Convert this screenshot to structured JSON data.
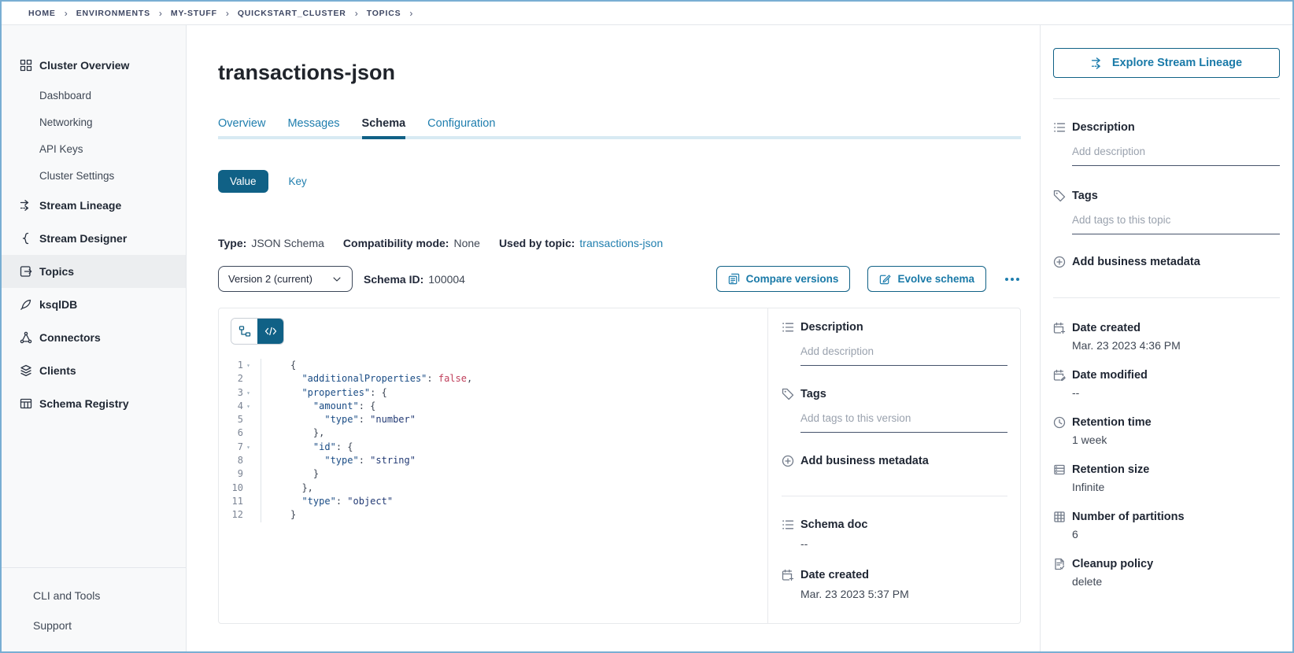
{
  "breadcrumb": [
    "HOME",
    "ENVIRONMENTS",
    "MY-STUFF",
    "QUICKSTART_CLUSTER",
    "TOPICS"
  ],
  "sidebar": {
    "items": [
      {
        "label": "Cluster Overview",
        "icon": "cluster-overview-icon",
        "type": "top"
      },
      {
        "label": "Dashboard",
        "type": "sub"
      },
      {
        "label": "Networking",
        "type": "sub"
      },
      {
        "label": "API Keys",
        "type": "sub"
      },
      {
        "label": "Cluster Settings",
        "type": "sub"
      },
      {
        "label": "Stream Lineage",
        "icon": "stream-lineage-icon",
        "type": "top"
      },
      {
        "label": "Stream Designer",
        "icon": "stream-designer-icon",
        "type": "top"
      },
      {
        "label": "Topics",
        "icon": "topics-icon",
        "type": "top",
        "active": true
      },
      {
        "label": "ksqlDB",
        "icon": "ksqldb-icon",
        "type": "top"
      },
      {
        "label": "Connectors",
        "icon": "connectors-icon",
        "type": "top"
      },
      {
        "label": "Clients",
        "icon": "clients-icon",
        "type": "top"
      },
      {
        "label": "Schema Registry",
        "icon": "schema-registry-icon",
        "type": "top"
      }
    ],
    "footer_items": [
      "CLI and Tools",
      "Support"
    ]
  },
  "page": {
    "title": "transactions-json"
  },
  "tabs": [
    {
      "label": "Overview"
    },
    {
      "label": "Messages"
    },
    {
      "label": "Schema",
      "active": true
    },
    {
      "label": "Configuration"
    }
  ],
  "serde_toggle": {
    "value_label": "Value",
    "key_label": "Key"
  },
  "schema_meta": {
    "type_label": "Type:",
    "type_value": "JSON Schema",
    "compatibility_label": "Compatibility mode:",
    "compatibility_value": "None",
    "used_by_label": "Used by topic:",
    "used_by_topic": "transactions-json"
  },
  "version_bar": {
    "selected_version": "Version 2 (current)",
    "schema_id_label": "Schema ID:",
    "schema_id": "100004",
    "compare_button": "Compare versions",
    "evolve_button": "Evolve schema"
  },
  "editor": {
    "lines": [
      {
        "num": 1,
        "fold": true,
        "segments": [
          [
            "p",
            "{"
          ]
        ]
      },
      {
        "num": 2,
        "fold": false,
        "segments": [
          [
            "p",
            "  "
          ],
          [
            "k",
            "\"additionalProperties\""
          ],
          [
            "p",
            ": "
          ],
          [
            "b",
            "false"
          ],
          [
            "p",
            ","
          ]
        ]
      },
      {
        "num": 3,
        "fold": true,
        "segments": [
          [
            "p",
            "  "
          ],
          [
            "k",
            "\"properties\""
          ],
          [
            "p",
            ": {"
          ]
        ]
      },
      {
        "num": 4,
        "fold": true,
        "segments": [
          [
            "p",
            "    "
          ],
          [
            "k",
            "\"amount\""
          ],
          [
            "p",
            ": {"
          ]
        ]
      },
      {
        "num": 5,
        "fold": false,
        "segments": [
          [
            "p",
            "      "
          ],
          [
            "k",
            "\"type\""
          ],
          [
            "p",
            ": "
          ],
          [
            "s",
            "\"number\""
          ]
        ]
      },
      {
        "num": 6,
        "fold": false,
        "segments": [
          [
            "p",
            "    },"
          ]
        ]
      },
      {
        "num": 7,
        "fold": true,
        "segments": [
          [
            "p",
            "    "
          ],
          [
            "k",
            "\"id\""
          ],
          [
            "p",
            ": {"
          ]
        ]
      },
      {
        "num": 8,
        "fold": false,
        "segments": [
          [
            "p",
            "      "
          ],
          [
            "k",
            "\"type\""
          ],
          [
            "p",
            ": "
          ],
          [
            "s",
            "\"string\""
          ]
        ]
      },
      {
        "num": 9,
        "fold": false,
        "segments": [
          [
            "p",
            "    }"
          ]
        ]
      },
      {
        "num": 10,
        "fold": false,
        "segments": [
          [
            "p",
            "  },"
          ]
        ]
      },
      {
        "num": 11,
        "fold": false,
        "segments": [
          [
            "p",
            "  "
          ],
          [
            "k",
            "\"type\""
          ],
          [
            "p",
            ": "
          ],
          [
            "s",
            "\"object\""
          ]
        ]
      },
      {
        "num": 12,
        "fold": false,
        "segments": [
          [
            "p",
            "}"
          ]
        ]
      }
    ]
  },
  "version_panel": {
    "description_label": "Description",
    "description_placeholder": "Add description",
    "tags_label": "Tags",
    "tags_placeholder": "Add tags to this version",
    "add_metadata_label": "Add business metadata",
    "schema_doc_label": "Schema doc",
    "schema_doc_value": "--",
    "date_created_label": "Date created",
    "date_created_value": "Mar. 23 2023 5:37 PM"
  },
  "topic_panel": {
    "explore_button": "Explore Stream Lineage",
    "description_label": "Description",
    "description_placeholder": "Add description",
    "tags_label": "Tags",
    "tags_placeholder": "Add tags to this topic",
    "add_metadata_label": "Add business metadata",
    "properties": [
      {
        "icon": "calendar-add-icon",
        "label": "Date created",
        "value": "Mar. 23 2023 4:36 PM"
      },
      {
        "icon": "calendar-edit-icon",
        "label": "Date modified",
        "value": "--"
      },
      {
        "icon": "clock-icon",
        "label": "Retention time",
        "value": "1 week"
      },
      {
        "icon": "retention-size-icon",
        "label": "Retention size",
        "value": "Infinite"
      },
      {
        "icon": "partitions-icon",
        "label": "Number of partitions",
        "value": "6"
      },
      {
        "icon": "cleanup-policy-icon",
        "label": "Cleanup policy",
        "value": "delete"
      }
    ]
  },
  "colors": {
    "primary_teal": "#106186",
    "link_blue": "#1f7eae",
    "active_tab_underline": "#106186",
    "bool_token": "#c0405c",
    "key_token": "#1a4c85"
  }
}
